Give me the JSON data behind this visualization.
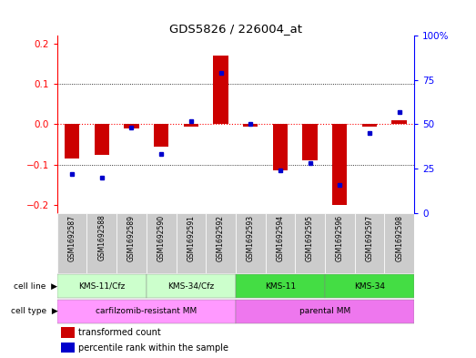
{
  "title": "GDS5826 / 226004_at",
  "samples": [
    "GSM1692587",
    "GSM1692588",
    "GSM1692589",
    "GSM1692590",
    "GSM1692591",
    "GSM1692592",
    "GSM1692593",
    "GSM1692594",
    "GSM1692595",
    "GSM1692596",
    "GSM1692597",
    "GSM1692598"
  ],
  "transformed_count": [
    -0.085,
    -0.075,
    -0.01,
    -0.055,
    -0.005,
    0.17,
    -0.005,
    -0.115,
    -0.09,
    -0.2,
    -0.005,
    0.01
  ],
  "percentile_rank": [
    22,
    20,
    48,
    33,
    52,
    79,
    50,
    24,
    28,
    16,
    45,
    57
  ],
  "cell_line_groups": [
    {
      "label": "KMS-11/Cfz",
      "start": 0,
      "end": 3,
      "color": "#ccffcc"
    },
    {
      "label": "KMS-34/Cfz",
      "start": 3,
      "end": 6,
      "color": "#ccffcc"
    },
    {
      "label": "KMS-11",
      "start": 6,
      "end": 9,
      "color": "#44dd44"
    },
    {
      "label": "KMS-34",
      "start": 9,
      "end": 12,
      "color": "#44dd44"
    }
  ],
  "cell_type_groups": [
    {
      "label": "carfilzomib-resistant MM",
      "start": 0,
      "end": 6,
      "color": "#ff99ff"
    },
    {
      "label": "parental MM",
      "start": 6,
      "end": 12,
      "color": "#ee77ee"
    }
  ],
  "ylim_left": [
    -0.22,
    0.22
  ],
  "ylim_right": [
    0,
    100
  ],
  "yticks_left": [
    -0.2,
    -0.1,
    0.0,
    0.1,
    0.2
  ],
  "yticks_right": [
    0,
    25,
    50,
    75,
    100
  ],
  "bar_color": "#cc0000",
  "dot_color": "#0000cc",
  "background_color": "#ffffff"
}
